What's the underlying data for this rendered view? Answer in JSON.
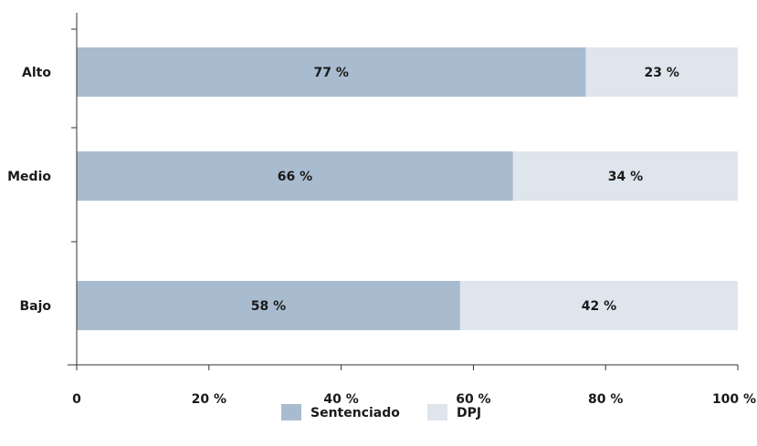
{
  "chart_data": {
    "type": "bar",
    "orientation": "horizontal",
    "stacked": true,
    "categories": [
      "Alto",
      "Medio",
      "Bajo"
    ],
    "series": [
      {
        "name": "Sentenciado",
        "color": "#a9bccf",
        "values": [
          77,
          66,
          58
        ],
        "labels": [
          "77 %",
          "66 %",
          "58 %"
        ]
      },
      {
        "name": "DPJ",
        "color": "#dfe5ec",
        "values": [
          23,
          34,
          42
        ],
        "labels": [
          "23 %",
          "34 %",
          "42 %"
        ]
      }
    ],
    "xlim": [
      0,
      100
    ],
    "x_ticks": [
      {
        "value": 0,
        "label": "0"
      },
      {
        "value": 20,
        "label": "20 %"
      },
      {
        "value": 40,
        "label": "40 %"
      },
      {
        "value": 60,
        "label": "60 %"
      },
      {
        "value": 80,
        "label": "80 %"
      },
      {
        "value": 100,
        "label": "100 %"
      }
    ],
    "grid": false,
    "legend_position": "bottom-center"
  }
}
